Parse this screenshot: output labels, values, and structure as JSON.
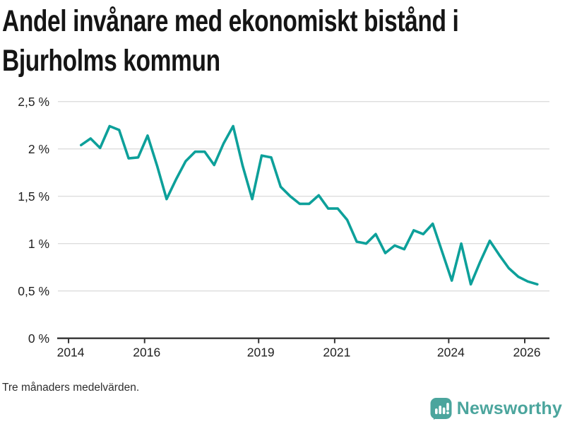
{
  "header": {
    "title_line1": "Andel invånare med ekonomiskt bistånd i",
    "title_line2": "Bjurholms kommun"
  },
  "footer": {
    "note": "Tre månaders medelvärden.",
    "brand": "Newsworthy"
  },
  "colors": {
    "line": "#0da09a",
    "brand": "#4ba59d",
    "grid": "#dddddd",
    "axis": "#333333",
    "tick_text": "#222222"
  },
  "chart_data": {
    "type": "line",
    "title": "Andel invånare med ekonomiskt bistånd i Bjurholms kommun",
    "note": "Tre månaders medelvärden.",
    "unit": "%",
    "xlabel": "",
    "ylabel": "",
    "ylim": [
      0,
      2.5
    ],
    "xlim": [
      2013.72,
      2026.65
    ],
    "grid": true,
    "legend_position": "none",
    "y_ticks": [
      {
        "value": 0,
        "label": "0 %"
      },
      {
        "value": 0.5,
        "label": "0,5 %"
      },
      {
        "value": 1,
        "label": "1 %"
      },
      {
        "value": 1.5,
        "label": "1,5 %"
      },
      {
        "value": 2,
        "label": "2 %"
      },
      {
        "value": 2.5,
        "label": "2,5 %"
      }
    ],
    "x_ticks": [
      {
        "value": 2014,
        "label": "2014"
      },
      {
        "value": 2016,
        "label": "2016"
      },
      {
        "value": 2019,
        "label": "2019"
      },
      {
        "value": 2021,
        "label": "2021"
      },
      {
        "value": 2024,
        "label": "2024"
      },
      {
        "value": 2026,
        "label": "2026"
      }
    ],
    "series": [
      {
        "name": "Andel invånare med ekonomiskt bistånd",
        "color": "#0da09a",
        "points": [
          [
            2014.33,
            2.04
          ],
          [
            2014.58,
            2.11
          ],
          [
            2014.83,
            2.01
          ],
          [
            2015.08,
            2.24
          ],
          [
            2015.33,
            2.2
          ],
          [
            2015.58,
            1.9
          ],
          [
            2015.83,
            1.91
          ],
          [
            2016.08,
            2.14
          ],
          [
            2016.33,
            1.82
          ],
          [
            2016.58,
            1.47
          ],
          [
            2016.83,
            1.68
          ],
          [
            2017.08,
            1.87
          ],
          [
            2017.33,
            1.97
          ],
          [
            2017.58,
            1.97
          ],
          [
            2017.83,
            1.83
          ],
          [
            2018.08,
            2.06
          ],
          [
            2018.33,
            2.24
          ],
          [
            2018.58,
            1.82
          ],
          [
            2018.83,
            1.47
          ],
          [
            2019.08,
            1.93
          ],
          [
            2019.33,
            1.91
          ],
          [
            2019.58,
            1.6
          ],
          [
            2019.83,
            1.5
          ],
          [
            2020.08,
            1.42
          ],
          [
            2020.33,
            1.42
          ],
          [
            2020.58,
            1.51
          ],
          [
            2020.83,
            1.37
          ],
          [
            2021.08,
            1.37
          ],
          [
            2021.33,
            1.25
          ],
          [
            2021.58,
            1.02
          ],
          [
            2021.83,
            1.0
          ],
          [
            2022.08,
            1.1
          ],
          [
            2022.33,
            0.9
          ],
          [
            2022.58,
            0.98
          ],
          [
            2022.83,
            0.94
          ],
          [
            2023.08,
            1.14
          ],
          [
            2023.33,
            1.1
          ],
          [
            2023.58,
            1.21
          ],
          [
            2023.83,
            0.91
          ],
          [
            2024.08,
            0.61
          ],
          [
            2024.33,
            1.0
          ],
          [
            2024.58,
            0.57
          ],
          [
            2024.83,
            0.81
          ],
          [
            2025.08,
            1.03
          ],
          [
            2025.33,
            0.88
          ],
          [
            2025.58,
            0.74
          ],
          [
            2025.83,
            0.65
          ],
          [
            2026.08,
            0.6
          ],
          [
            2026.33,
            0.57
          ]
        ]
      }
    ]
  }
}
